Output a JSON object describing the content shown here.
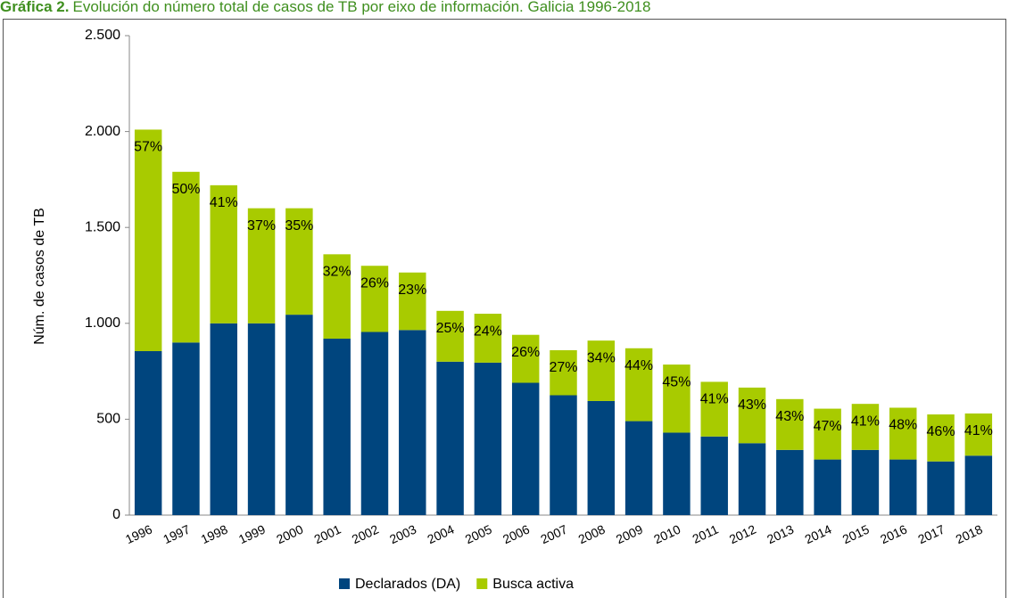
{
  "chart_data": {
    "type": "stacked_bar",
    "title_label": "Gráfica 2.",
    "title": "Evolución do número total de casos de TB por eixo de información. Galicia 1996-2018",
    "ylabel": "Núm. de casos de TB",
    "categories": [
      "1996",
      "1997",
      "1998",
      "1999",
      "2000",
      "2001",
      "2002",
      "2003",
      "2004",
      "2005",
      "2006",
      "2007",
      "2008",
      "2009",
      "2010",
      "2011",
      "2012",
      "2013",
      "2014",
      "2015",
      "2016",
      "2017",
      "2018"
    ],
    "series": [
      {
        "name": "Declarados (DA)",
        "color": "#00457e",
        "values": [
          855,
          900,
          1000,
          1000,
          1045,
          920,
          955,
          965,
          800,
          795,
          690,
          625,
          595,
          490,
          430,
          410,
          375,
          340,
          290,
          340,
          290,
          280,
          310
        ]
      },
      {
        "name": "Busca activa",
        "color": "#a8cb00",
        "values": [
          1155,
          890,
          720,
          600,
          555,
          440,
          345,
          300,
          265,
          255,
          250,
          235,
          315,
          380,
          355,
          285,
          290,
          265,
          265,
          240,
          270,
          245,
          220
        ],
        "value_labels": [
          {
            "value": 57,
            "label": "57%"
          },
          {
            "value": 50,
            "label": "50%"
          },
          {
            "value": 41,
            "label": "41%"
          },
          {
            "value": 37,
            "label": "37%"
          },
          {
            "value": 35,
            "label": "35%"
          },
          {
            "value": 32,
            "label": "32%"
          },
          {
            "value": 26,
            "label": "26%"
          },
          {
            "value": 23,
            "label": "23%"
          },
          {
            "value": 25,
            "label": "25%"
          },
          {
            "value": 24,
            "label": "24%"
          },
          {
            "value": 26,
            "label": "26%"
          },
          {
            "value": 27,
            "label": "27%"
          },
          {
            "value": 34,
            "label": "34%"
          },
          {
            "value": 44,
            "label": "44%"
          },
          {
            "value": 45,
            "label": "45%"
          },
          {
            "value": 41,
            "label": "41%"
          },
          {
            "value": 43,
            "label": "43%"
          },
          {
            "value": 43,
            "label": "43%"
          },
          {
            "value": 47,
            "label": "47%"
          },
          {
            "value": 41,
            "label": "41%"
          },
          {
            "value": 48,
            "label": "48%"
          },
          {
            "value": 46,
            "label": "46%"
          },
          {
            "value": 41,
            "label": "41%"
          }
        ]
      }
    ],
    "ylim": [
      0,
      2500
    ],
    "yticks": [
      0,
      500,
      {
        "value": 1000,
        "label": "1.000"
      },
      {
        "value": 1500,
        "label": "1.500"
      },
      {
        "value": 2000,
        "label": "2.000"
      },
      {
        "value": 2500,
        "label": "2.500"
      }
    ],
    "grid": false,
    "legend": "bottom"
  }
}
